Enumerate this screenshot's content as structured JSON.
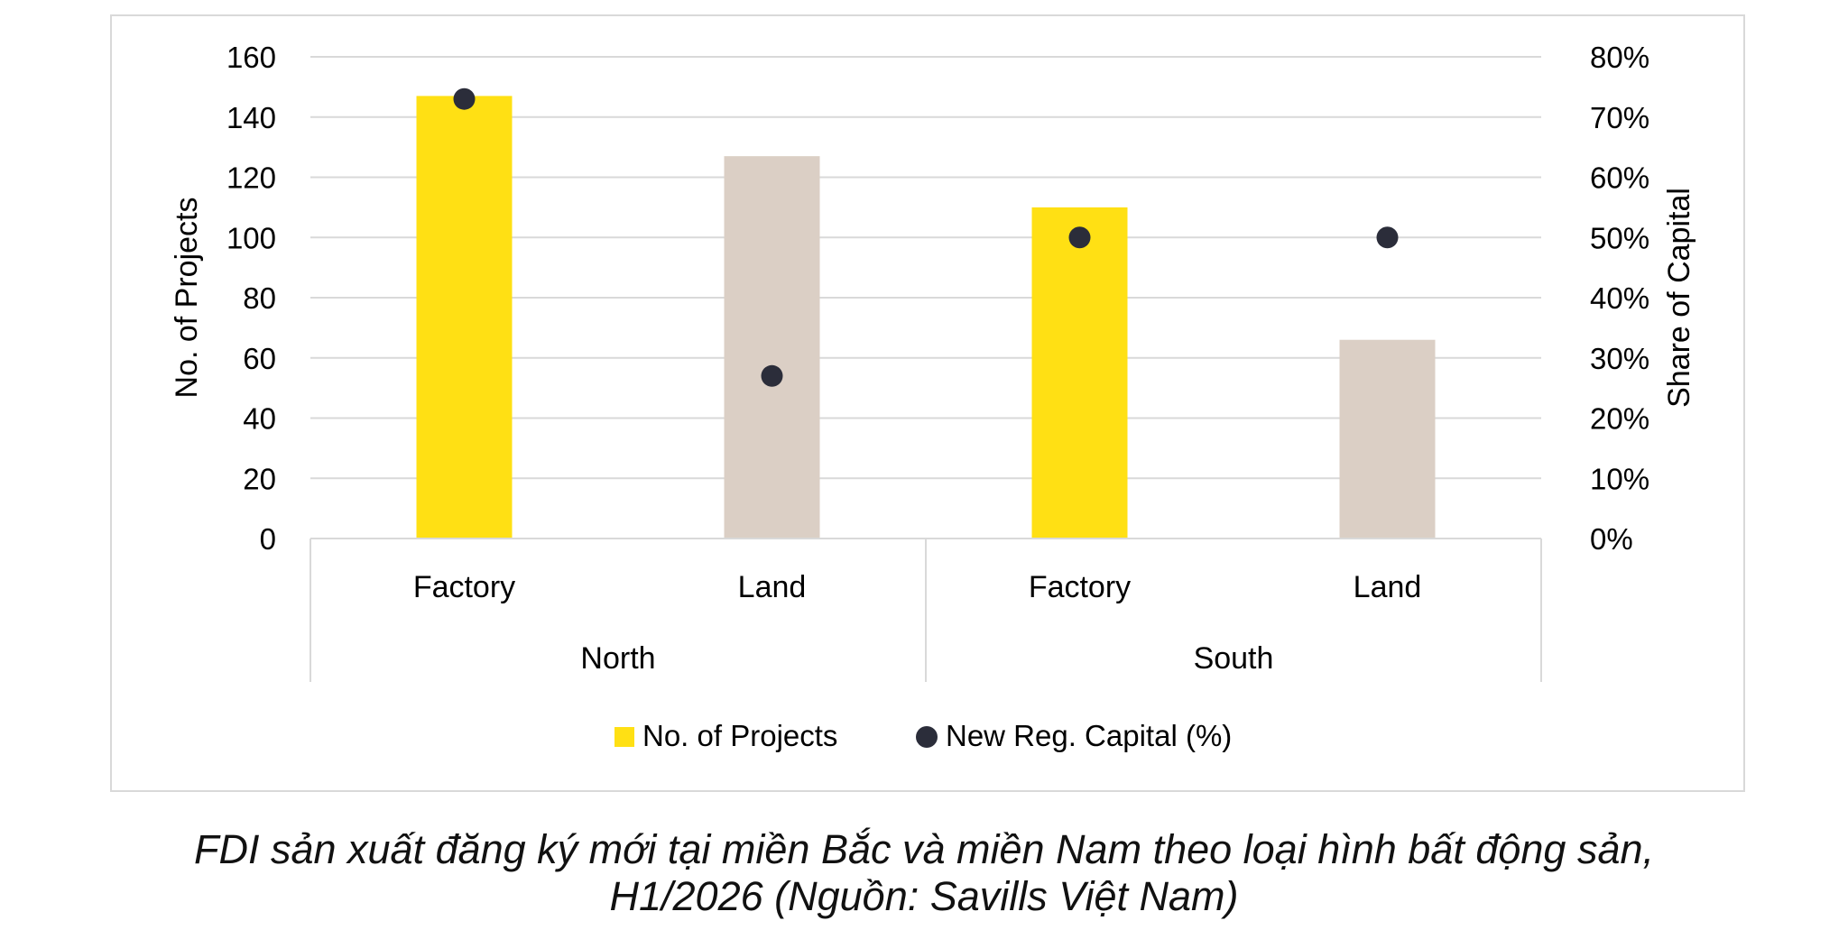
{
  "chart_data": {
    "type": "bar",
    "groups": [
      {
        "label": "North",
        "categories": [
          "Factory",
          "Land"
        ]
      },
      {
        "label": "South",
        "categories": [
          "Factory",
          "Land"
        ]
      }
    ],
    "categories": [
      "Factory",
      "Land",
      "Factory",
      "Land"
    ],
    "series": [
      {
        "name": "No. of Projects",
        "type": "bar",
        "axis": "left",
        "values": [
          147,
          127,
          110,
          66
        ]
      },
      {
        "name": "New Reg. Capital (%)",
        "type": "scatter",
        "axis": "right",
        "values": [
          73,
          27,
          50,
          50
        ]
      }
    ],
    "bar_colors": [
      "#FFE014",
      "#DBCFC5",
      "#FFE014",
      "#DBCFC5"
    ],
    "marker_color": "#2B2D3A",
    "ylabel": "No. of Projects",
    "ylabel_right": "Share of Capital",
    "ylim": [
      0,
      160
    ],
    "ylim_right": [
      0,
      80
    ],
    "yticks": [
      "0",
      "20",
      "40",
      "60",
      "80",
      "100",
      "120",
      "140",
      "160"
    ],
    "yticks_right": [
      "0%",
      "10%",
      "20%",
      "30%",
      "40%",
      "50%",
      "60%",
      "70%",
      "80%"
    ],
    "grid": true,
    "legend_position": "bottom"
  },
  "caption": {
    "line1": "FDI sản xuất đăng ký mới tại miền Bắc và miền Nam theo loại hình bất động sản,",
    "line2": "H1/2026 (Nguồn: Savills Việt Nam)"
  }
}
